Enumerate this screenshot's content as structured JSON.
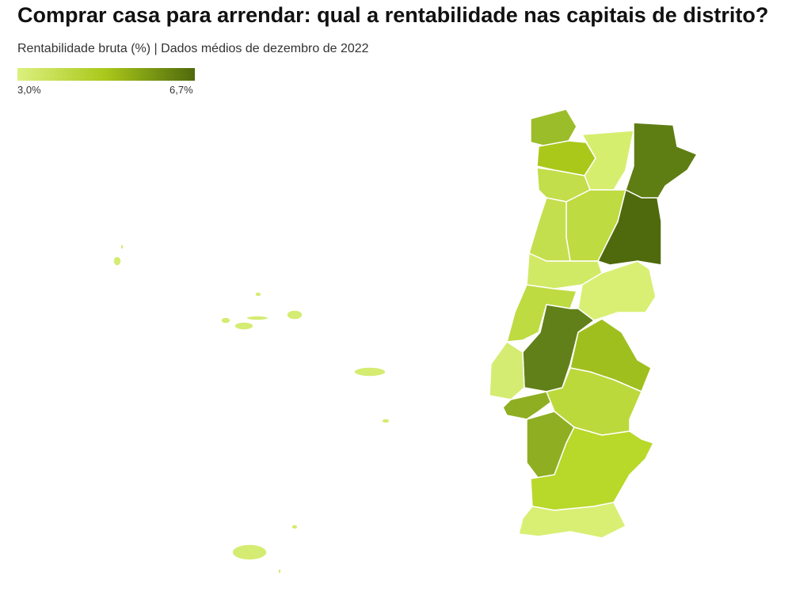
{
  "title": "Comprar casa para arrendar: qual a rentabilidade nas capitais de distrito?",
  "subtitle": "Rentabilidade bruta (%) | Dados médios de dezembro de 2022",
  "legend": {
    "min_label": "3,0%",
    "max_label": "6,7%"
  }
}
